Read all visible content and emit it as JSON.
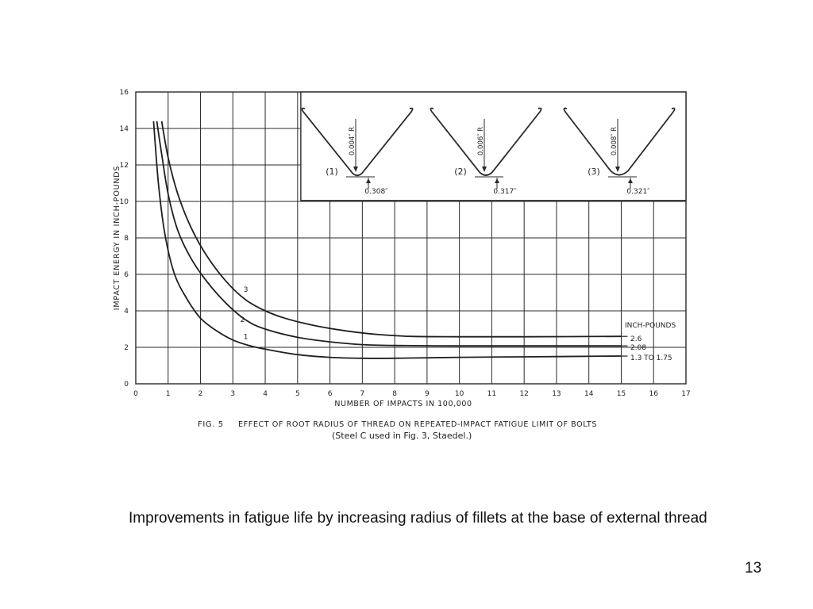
{
  "chart_data": {
    "type": "line",
    "ylabel": "IMPACT ENERGY IN INCH-POUNDS",
    "xlabel": "NUMBER OF IMPACTS IN 100,000",
    "xlim": [
      0,
      17
    ],
    "ylim": [
      0,
      16
    ],
    "grid": true,
    "x_ticks": [
      "0",
      "1",
      "2",
      "3",
      "4",
      "5",
      "6",
      "7",
      "8",
      "9",
      "10",
      "11",
      "12",
      "13",
      "14",
      "15",
      "16",
      "17"
    ],
    "y_ticks": [
      "0",
      "2",
      "4",
      "6",
      "8",
      "10",
      "12",
      "14",
      "16"
    ],
    "series": [
      {
        "name": "1",
        "x": [
          0.55,
          0.7,
          0.9,
          1.2,
          1.6,
          2.0,
          2.5,
          3.0,
          3.5,
          4.0,
          5.0,
          6.0,
          7.0,
          8.0,
          10.0,
          12.0,
          15.0
        ],
        "y": [
          14.4,
          11.0,
          8.2,
          6.0,
          4.6,
          3.6,
          2.9,
          2.4,
          2.1,
          1.9,
          1.6,
          1.45,
          1.4,
          1.4,
          1.45,
          1.48,
          1.52
        ]
      },
      {
        "name": "2",
        "x": [
          0.65,
          0.8,
          1.0,
          1.3,
          1.7,
          2.2,
          2.8,
          3.4,
          4.0,
          5.0,
          6.0,
          7.0,
          8.0,
          10.0,
          12.0,
          15.0
        ],
        "y": [
          14.4,
          12.6,
          10.4,
          8.4,
          6.9,
          5.6,
          4.4,
          3.5,
          3.0,
          2.55,
          2.3,
          2.15,
          2.1,
          2.08,
          2.08,
          2.08
        ]
      },
      {
        "name": "3",
        "x": [
          0.8,
          1.0,
          1.3,
          1.7,
          2.2,
          2.8,
          3.4,
          4.0,
          4.6,
          5.5,
          6.5,
          7.5,
          8.5,
          10.0,
          12.0,
          15.0
        ],
        "y": [
          14.4,
          12.4,
          10.4,
          8.6,
          7.0,
          5.6,
          4.6,
          4.0,
          3.6,
          3.2,
          2.9,
          2.7,
          2.6,
          2.58,
          2.58,
          2.6
        ]
      }
    ],
    "inset": {
      "thread_profiles": [
        {
          "label": "(1)",
          "radius": "0.004″ R",
          "dimension": "0.308″"
        },
        {
          "label": "(2)",
          "radius": "0.006″ R",
          "dimension": "0.317″"
        },
        {
          "label": "(3)",
          "radius": "0.008″ R",
          "dimension": "0.321″"
        }
      ]
    },
    "endpoint_legend": {
      "title": "INCH-POUNDS",
      "values": [
        "2.6",
        "2.08",
        "1.3 TO 1.75"
      ]
    },
    "caption": {
      "fig_label": "FIG. 5",
      "title": "EFFECT OF ROOT RADIUS OF THREAD ON REPEATED-IMPACT FATIGUE LIMIT OF BOLTS",
      "subtitle": "(Steel C used in Fig. 3,   Staedel.)"
    }
  },
  "slide": {
    "text": "Improvements in fatigue life by increasing radius of fillets at the base of external thread",
    "page_number": "13"
  }
}
